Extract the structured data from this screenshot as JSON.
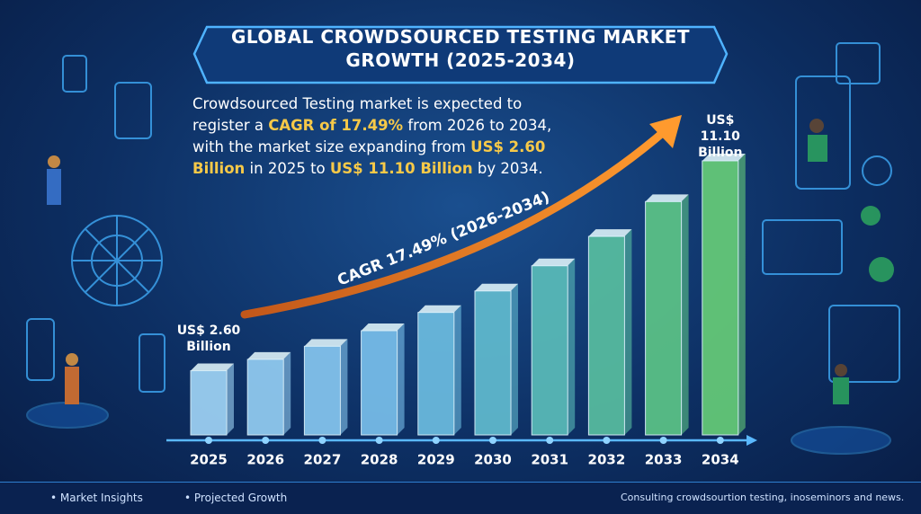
{
  "chart_data": {
    "type": "bar",
    "title": "GLOBAL CROWDSOURCED TESTING MARKET GROWTH (2025-2034)",
    "description": [
      {
        "text": "Crowdsourced Testing market is expected to register a ",
        "emphasis": false
      },
      {
        "text": "CAGR of 17.49%",
        "emphasis": true
      },
      {
        "text": " from 2026 to 2034, with the market size expanding from ",
        "emphasis": false
      },
      {
        "text": "US$ 2.60 Billion",
        "emphasis": true
      },
      {
        "text": " in 2025 to ",
        "emphasis": false
      },
      {
        "text": "US$ 11.10 Billion",
        "emphasis": true
      },
      {
        "text": " by 2034.",
        "emphasis": false
      }
    ],
    "annotation": "CAGR 17.49% (2026-2034)",
    "categories": [
      "2025",
      "2026",
      "2027",
      "2028",
      "2029",
      "2030",
      "2031",
      "2032",
      "2033",
      "2034"
    ],
    "values": [
      2.6,
      3.06,
      3.59,
      4.22,
      4.96,
      5.83,
      6.85,
      8.04,
      9.45,
      11.1
    ],
    "value_labels": [
      "US$ 2.60 Billion",
      null,
      null,
      null,
      null,
      null,
      null,
      null,
      null,
      "US$ 11.10 Billion"
    ],
    "colors": [
      "#9fd3f5",
      "#93cdf2",
      "#86c6ef",
      "#79bfeb",
      "#6cbce0",
      "#61bbcf",
      "#5abcb9",
      "#58bea0",
      "#5cc487",
      "#66cc78"
    ],
    "footer": {
      "left": [
        "Market Insights",
        "Projected Growth"
      ],
      "right": "Consulting crowdsourtion testing, inoseminors and news."
    }
  }
}
